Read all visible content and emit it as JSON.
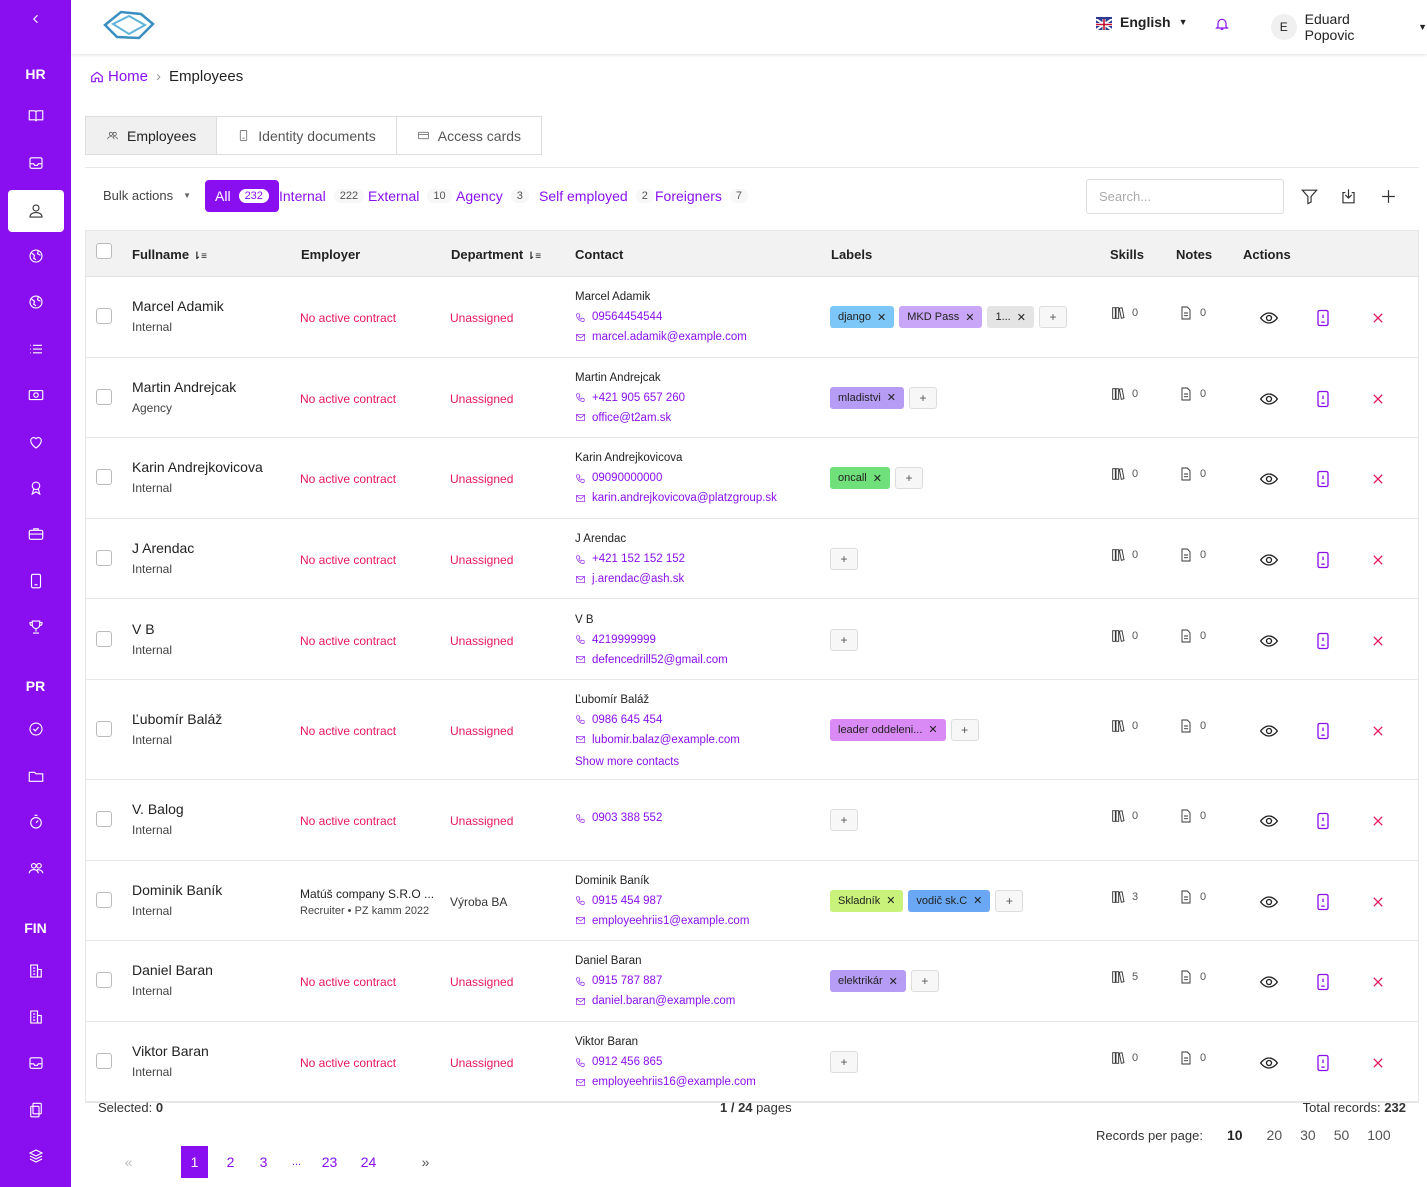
{
  "sidebar": {
    "sections": [
      "HR",
      "PR",
      "FIN"
    ]
  },
  "header": {
    "language": "English",
    "user_initial": "E",
    "user_name": "Eduard Popovic"
  },
  "breadcrumb": {
    "home": "Home",
    "current": "Employees"
  },
  "tabs": [
    {
      "label": "Employees"
    },
    {
      "label": "Identity documents"
    },
    {
      "label": "Access cards"
    }
  ],
  "filters": {
    "bulk_actions": "Bulk actions",
    "chips": [
      {
        "label": "All",
        "count": "232"
      },
      {
        "label": "Internal",
        "count": "222"
      },
      {
        "label": "External",
        "count": "10"
      },
      {
        "label": "Agency",
        "count": "3"
      },
      {
        "label": "Self employed",
        "count": "2"
      },
      {
        "label": "Foreigners",
        "count": "7"
      }
    ],
    "search_placeholder": "Search..."
  },
  "columns": {
    "fullname": "Fullname",
    "employer": "Employer",
    "department": "Department",
    "contact": "Contact",
    "labels": "Labels",
    "skills": "Skills",
    "notes": "Notes",
    "actions": "Actions"
  },
  "rows": [
    {
      "name": "Marcel Adamik",
      "type": "Internal",
      "employer": "No active contract",
      "department": "Unassigned",
      "contact_name": "Marcel Adamik",
      "phone": "09564454544",
      "email": "marcel.adamik@example.com",
      "labels": [
        {
          "text": "django",
          "color": "#7cc7f7"
        },
        {
          "text": "MKD Pass",
          "color": "#c9a6f7"
        },
        {
          "text": "1...",
          "color": "#e4e4e4"
        }
      ],
      "skills": "0",
      "notes": "0"
    },
    {
      "name": "Martin Andrejcak",
      "type": "Agency",
      "employer": "No active contract",
      "department": "Unassigned",
      "contact_name": "Martin Andrejcak",
      "phone": "+421 905 657 260",
      "email": "office@t2am.sk",
      "labels": [
        {
          "text": "mladistvi",
          "color": "#b69cf5"
        }
      ],
      "skills": "0",
      "notes": "0"
    },
    {
      "name": "Karin Andrejkovicova",
      "type": "Internal",
      "employer": "No active contract",
      "department": "Unassigned",
      "contact_name": "Karin Andrejkovicova",
      "phone": "09090000000",
      "email": "karin.andrejkovicova@platzgroup.sk",
      "labels": [
        {
          "text": "oncall",
          "color": "#6fe07a"
        }
      ],
      "skills": "0",
      "notes": "0"
    },
    {
      "name": "J Arendac",
      "type": "Internal",
      "employer": "No active contract",
      "department": "Unassigned",
      "contact_name": "J Arendac",
      "phone": "+421 152 152 152",
      "email": "j.arendac@ash.sk",
      "labels": [],
      "skills": "0",
      "notes": "0"
    },
    {
      "name": "V B",
      "type": "Internal",
      "employer": "No active contract",
      "department": "Unassigned",
      "contact_name": "V B",
      "phone": "4219999999",
      "email": "defencedrill52@gmail.com",
      "labels": [],
      "skills": "0",
      "notes": "0"
    },
    {
      "name": "Ľubomír Baláž",
      "type": "Internal",
      "employer": "No active contract",
      "department": "Unassigned",
      "contact_name": "Ľubomír Baláž",
      "phone": "0986 645 454",
      "email": "lubomir.balaz@example.com",
      "more": "Show more contacts",
      "labels": [
        {
          "text": "leader oddeleni...",
          "color": "#d98af5"
        }
      ],
      "skills": "0",
      "notes": "0"
    },
    {
      "name": "V. Balog",
      "type": "Internal",
      "employer": "No active contract",
      "department": "Unassigned",
      "contact_name": "",
      "phone": "0903 388 552",
      "email": "",
      "labels": [],
      "skills": "0",
      "notes": "0"
    },
    {
      "name": "Dominik Baník",
      "type": "Internal",
      "employer": "Matúš company S.R.O ...",
      "employer_sub": "Recruiter  •  PZ kamm 2022",
      "department": "Výroba BA",
      "contact_name": "Dominik Baník",
      "phone": "0915 454 987",
      "email": "employeehriis1@example.com",
      "labels": [
        {
          "text": "Skladník",
          "color": "#c8f27a"
        },
        {
          "text": "vodič sk.C",
          "color": "#6aa8f5"
        }
      ],
      "skills": "3",
      "notes": "0"
    },
    {
      "name": "Daniel Baran",
      "type": "Internal",
      "employer": "No active contract",
      "department": "Unassigned",
      "contact_name": "Daniel Baran",
      "phone": "0915 787 887",
      "email": "daniel.baran@example.com",
      "labels": [
        {
          "text": "elektrikár",
          "color": "#b69cf5"
        }
      ],
      "skills": "5",
      "notes": "0"
    },
    {
      "name": "Viktor Baran",
      "type": "Internal",
      "employer": "No active contract",
      "department": "Unassigned",
      "contact_name": "Viktor Baran",
      "phone": "0912 456 865",
      "email": "employeehriis16@example.com",
      "labels": [],
      "skills": "0",
      "notes": "0"
    }
  ],
  "footer": {
    "selected_label": "Selected:",
    "selected_value": "0",
    "pages": "1 / 24",
    "pages_suffix": "pages",
    "total_label": "Total records:",
    "total_value": "232",
    "rpp_label": "Records per page:",
    "rpp_options": [
      "10",
      "20",
      "30",
      "50",
      "100"
    ],
    "pager": [
      "1",
      "2",
      "3",
      "...",
      "23",
      "24"
    ]
  },
  "colors": {
    "accent": "#8a0ff0",
    "danger": "#e8175d"
  }
}
